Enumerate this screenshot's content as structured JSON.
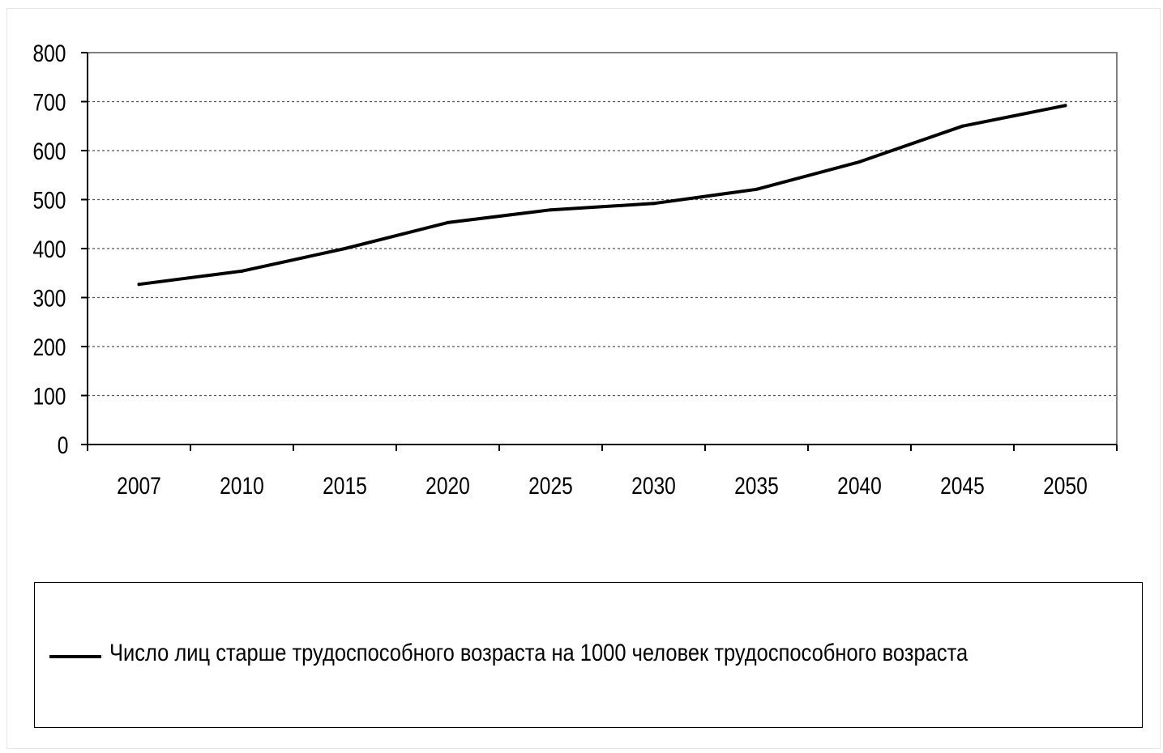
{
  "chart_data": {
    "type": "line",
    "title": "",
    "xlabel": "",
    "ylabel": "",
    "categories": [
      "2007",
      "2010",
      "2015",
      "2020",
      "2025",
      "2030",
      "2035",
      "2040",
      "2045",
      "2050"
    ],
    "series": [
      {
        "name": "Число лиц старше трудоспособного возраста на 1000 человек трудоспособного возраста",
        "values": [
          327,
          354,
          400,
          453,
          479,
          492,
          521,
          577,
          650,
          692
        ],
        "color": "#000000"
      }
    ],
    "ylim": [
      0,
      800
    ],
    "yticks": [
      0,
      100,
      200,
      300,
      400,
      500,
      600,
      700,
      800
    ],
    "grid": true,
    "legend_position": "bottom"
  }
}
